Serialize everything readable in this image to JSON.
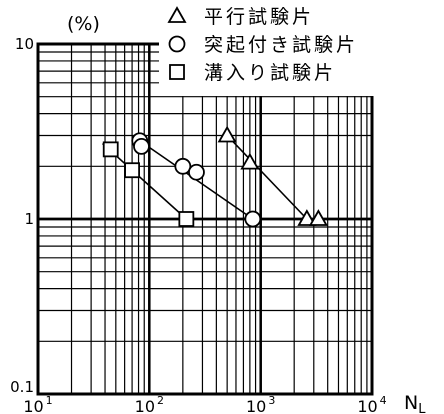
{
  "chart_data": {
    "type": "scatter",
    "ylabel": "(%)",
    "xlabel": "N",
    "xlabel_sub": "L",
    "x_scale": "log",
    "y_scale": "log",
    "xlim": [
      10,
      10000
    ],
    "ylim": [
      0.1,
      10
    ],
    "grid": true,
    "legend_position": "top-right",
    "x_ticks": [
      {
        "value": 10,
        "base": "10",
        "exp": "1"
      },
      {
        "value": 100,
        "base": "10",
        "exp": "2"
      },
      {
        "value": 1000,
        "base": "10",
        "exp": "3"
      },
      {
        "value": 10000,
        "base": "10",
        "exp": "4"
      }
    ],
    "y_ticks": [
      {
        "value": 10,
        "label": "10"
      },
      {
        "value": 1,
        "label": "1"
      },
      {
        "value": 0.1,
        "label": "0.1"
      }
    ],
    "series": [
      {
        "name": "平行試験片",
        "marker": "triangle",
        "points": [
          [
            500,
            3.0
          ],
          [
            800,
            2.1
          ],
          [
            2600,
            1.0
          ],
          [
            3300,
            1.0
          ]
        ]
      },
      {
        "name": "突起付き試験片",
        "marker": "circle",
        "points": [
          [
            82,
            2.8
          ],
          [
            85,
            2.6
          ],
          [
            200,
            2.0
          ],
          [
            265,
            1.85
          ],
          [
            850,
            1.0
          ]
        ]
      },
      {
        "name": "溝入り試験片",
        "marker": "square",
        "points": [
          [
            45,
            2.5
          ],
          [
            70,
            1.9
          ],
          [
            215,
            1.0
          ]
        ]
      }
    ],
    "trend_lines": [
      {
        "series": "平行試験片",
        "from": [
          500,
          3.0
        ],
        "to": [
          2600,
          1.0
        ]
      },
      {
        "series": "突起付き試験片",
        "from": [
          82,
          2.8
        ],
        "to": [
          850,
          1.0
        ]
      },
      {
        "series": "溝入り試験片",
        "from": [
          38,
          2.7
        ],
        "to": [
          215,
          1.0
        ]
      }
    ]
  },
  "colors": {
    "line": "#000000",
    "background": "#ffffff"
  }
}
